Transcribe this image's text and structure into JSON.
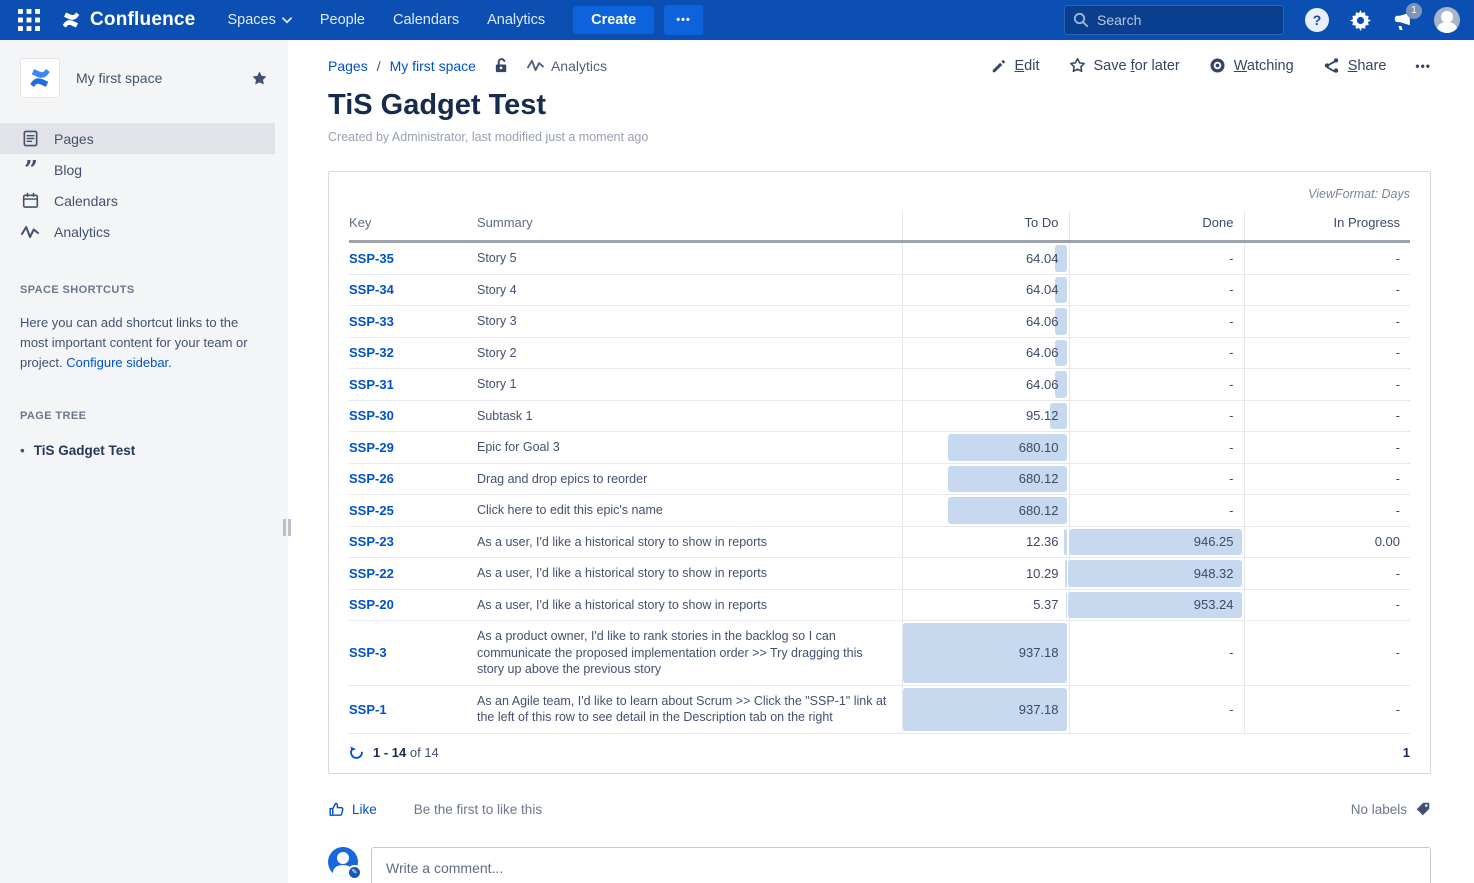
{
  "nav": {
    "brand": "Confluence",
    "items": [
      "Spaces",
      "People",
      "Calendars",
      "Analytics"
    ],
    "create_label": "Create",
    "more_glyph": "•••",
    "search_placeholder": "Search",
    "notification_count": "1",
    "help_glyph": "?"
  },
  "sidebar": {
    "space_name": "My first space",
    "items": [
      "Pages",
      "Blog",
      "Calendars",
      "Analytics"
    ],
    "shortcuts_heading": "SPACE SHORTCUTS",
    "shortcuts_text": "Here you can add shortcut links to the most important content for your team or project.",
    "configure_link": "Configure sidebar.",
    "page_tree_heading": "PAGE TREE",
    "page_tree_item": "TiS Gadget Test",
    "bullet_glyph": "•",
    "blog_quote_glyph": "”"
  },
  "breadcrumb": {
    "pages": "Pages",
    "separator": "/",
    "space": "My first space",
    "analytics": "Analytics"
  },
  "actions": {
    "buttons": [
      {
        "label": "Edit",
        "underline": "E",
        "icon": "pencil-icon"
      },
      {
        "label": "Save for later",
        "underline": "f",
        "icon": "star-icon"
      },
      {
        "label": "Watching",
        "underline": "W",
        "icon": "eye-icon"
      },
      {
        "label": "Share",
        "underline": "S",
        "icon": "share-icon"
      }
    ],
    "more_glyph": "•••"
  },
  "page": {
    "title": "TiS Gadget Test",
    "byline": "Created by Administrator, last modified just a moment ago"
  },
  "gadget": {
    "view_format": "ViewFormat: Days",
    "columns": [
      "Key",
      "Summary",
      "To Do",
      "Done",
      "In Progress"
    ],
    "max_value": 953.24,
    "bar_color": "#C6D9EE",
    "rows": [
      {
        "key": "SSP-35",
        "summary": "Story 5",
        "todo": "64.04",
        "done": "-",
        "in_progress": "-"
      },
      {
        "key": "SSP-34",
        "summary": "Story 4",
        "todo": "64.04",
        "done": "-",
        "in_progress": "-"
      },
      {
        "key": "SSP-33",
        "summary": "Story 3",
        "todo": "64.06",
        "done": "-",
        "in_progress": "-"
      },
      {
        "key": "SSP-32",
        "summary": "Story 2",
        "todo": "64.06",
        "done": "-",
        "in_progress": "-"
      },
      {
        "key": "SSP-31",
        "summary": "Story 1",
        "todo": "64.06",
        "done": "-",
        "in_progress": "-"
      },
      {
        "key": "SSP-30",
        "summary": "Subtask 1",
        "todo": "95.12",
        "done": "-",
        "in_progress": "-"
      },
      {
        "key": "SSP-29",
        "summary": "Epic for Goal 3",
        "todo": "680.10",
        "done": "-",
        "in_progress": "-"
      },
      {
        "key": "SSP-26",
        "summary": "Drag and drop epics to reorder",
        "todo": "680.12",
        "done": "-",
        "in_progress": "-"
      },
      {
        "key": "SSP-25",
        "summary": "Click here to edit this epic's name",
        "todo": "680.12",
        "done": "-",
        "in_progress": "-"
      },
      {
        "key": "SSP-23",
        "summary": "As a user, I'd like a historical story to show in reports",
        "todo": "12.36",
        "done": "946.25",
        "in_progress": "0.00"
      },
      {
        "key": "SSP-22",
        "summary": "As a user, I'd like a historical story to show in reports",
        "todo": "10.29",
        "done": "948.32",
        "in_progress": "-"
      },
      {
        "key": "SSP-20",
        "summary": "As a user, I'd like a historical story to show in reports",
        "todo": "5.37",
        "done": "953.24",
        "in_progress": "-"
      },
      {
        "key": "SSP-3",
        "summary": "As a product owner, I'd like to rank stories in the backlog so I can communicate the proposed implementation order >> Try dragging this story up above the previous story",
        "todo": "937.18",
        "done": "-",
        "in_progress": "-"
      },
      {
        "key": "SSP-1",
        "summary": "As an Agile team, I'd like to learn about Scrum >> Click the \"SSP-1\" link at the left of this row to see detail in the Description tab on the right",
        "todo": "937.18",
        "done": "-",
        "in_progress": "-"
      }
    ],
    "pagination": {
      "range": "1 - 14",
      "of_label": "of 14",
      "page": "1"
    }
  },
  "social": {
    "like_label": "Like",
    "first_like_text": "Be the first to like this",
    "labels_text": "No labels"
  },
  "comment": {
    "placeholder": "Write a comment..."
  },
  "colors": {
    "nav_bg": "#0B4FB3",
    "accent_blue": "#0052CC",
    "title_text": "#172B4D"
  }
}
